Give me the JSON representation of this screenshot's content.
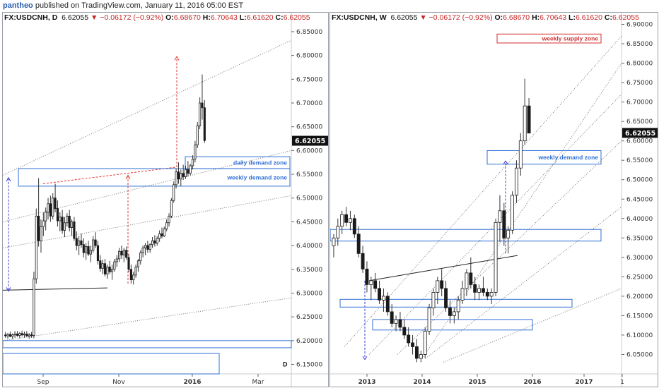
{
  "header": {
    "user": "pantheo",
    "text": "published on TradingView.com, January 11, 2016 05:00 EST"
  },
  "colors": {
    "candle_up": "#ffffff",
    "candle_down": "#1a1a1a",
    "zone_blue": "#2f6fd6",
    "supply_red": "#d32f2f",
    "arrow_red": "#e53935",
    "arrow_blue": "#3b3bd6",
    "price_tag_bg": "#111111"
  },
  "chart_data": [
    {
      "type": "candlestick",
      "symbol": "FX:USDCNH",
      "interval": "D",
      "ohlc": {
        "price": "6.62055",
        "change": "−0.06172 (−0.92%)",
        "open_label": "O:",
        "open": "6.68670",
        "high_label": "H:",
        "high": "6.70643",
        "low_label": "L:",
        "low": "6.61620",
        "close_label": "C:",
        "close": "6.62055"
      },
      "last_price_tag": "6.62055",
      "ylim": [
        6.13,
        6.89
      ],
      "yticks": [
        6.15,
        6.2,
        6.25,
        6.3,
        6.35,
        6.4,
        6.45,
        6.5,
        6.55,
        6.6,
        6.65,
        6.7,
        6.75,
        6.8,
        6.85
      ],
      "ytick_labels": [
        "6.15000",
        "6.20000",
        "6.25000",
        "6.30000",
        "6.35000",
        "6.40000",
        "6.45000",
        "6.50000",
        "6.55000",
        "6.60000",
        "6.65000",
        "6.70000",
        "6.75000",
        "6.80000",
        "6.85000"
      ],
      "xticks": [
        {
          "label": "Sep",
          "bold": false,
          "t": 57
        },
        {
          "label": "Nov",
          "bold": false,
          "t": 164
        },
        {
          "label": "2016",
          "bold": true,
          "t": 268
        },
        {
          "label": "Mar",
          "bold": false,
          "t": 361
        }
      ],
      "zones": [
        {
          "label": "daily demand zone",
          "t0": 258,
          "t1": 408,
          "y0": 6.562,
          "y1": 6.587
        },
        {
          "label": "weekly demand zone",
          "t0": 22,
          "t1": 408,
          "y0": 6.525,
          "y1": 6.562
        }
      ],
      "corner_label": "D",
      "ohlc_series": [
        [
          6.212,
          6.218,
          6.206,
          6.21
        ],
        [
          6.21,
          6.216,
          6.204,
          6.213
        ],
        [
          6.213,
          6.219,
          6.207,
          6.209
        ],
        [
          6.209,
          6.215,
          6.203,
          6.212
        ],
        [
          6.212,
          6.22,
          6.206,
          6.214
        ],
        [
          6.214,
          6.22,
          6.208,
          6.211
        ],
        [
          6.211,
          6.218,
          6.205,
          6.215
        ],
        [
          6.215,
          6.221,
          6.209,
          6.212
        ],
        [
          6.212,
          6.219,
          6.206,
          6.214
        ],
        [
          6.214,
          6.22,
          6.208,
          6.21
        ],
        [
          6.21,
          6.216,
          6.204,
          6.212
        ],
        [
          6.212,
          6.218,
          6.206,
          6.211
        ],
        [
          6.211,
          6.345,
          6.205,
          6.33
        ],
        [
          6.33,
          6.478,
          6.32,
          6.462
        ],
        [
          6.462,
          6.542,
          6.398,
          6.41
        ],
        [
          6.41,
          6.455,
          6.385,
          6.44
        ],
        [
          6.44,
          6.47,
          6.42,
          6.452
        ],
        [
          6.452,
          6.48,
          6.432,
          6.47
        ],
        [
          6.47,
          6.5,
          6.455,
          6.488
        ],
        [
          6.488,
          6.505,
          6.45,
          6.462
        ],
        [
          6.462,
          6.51,
          6.455,
          6.5
        ],
        [
          6.5,
          6.53,
          6.47,
          6.478
        ],
        [
          6.478,
          6.495,
          6.44,
          6.452
        ],
        [
          6.452,
          6.47,
          6.43,
          6.46
        ],
        [
          6.46,
          6.475,
          6.425,
          6.432
        ],
        [
          6.432,
          6.46,
          6.418,
          6.448
        ],
        [
          6.448,
          6.468,
          6.44,
          6.462
        ],
        [
          6.462,
          6.475,
          6.43,
          6.438
        ],
        [
          6.438,
          6.455,
          6.42,
          6.45
        ],
        [
          6.45,
          6.46,
          6.41,
          6.415
        ],
        [
          6.415,
          6.43,
          6.39,
          6.4
        ],
        [
          6.4,
          6.42,
          6.38,
          6.41
        ],
        [
          6.41,
          6.425,
          6.395,
          6.402
        ],
        [
          6.402,
          6.415,
          6.375,
          6.385
        ],
        [
          6.385,
          6.405,
          6.37,
          6.398
        ],
        [
          6.398,
          6.41,
          6.378,
          6.382
        ],
        [
          6.382,
          6.4,
          6.365,
          6.39
        ],
        [
          6.39,
          6.42,
          6.385,
          6.412
        ],
        [
          6.412,
          6.428,
          6.395,
          6.4
        ],
        [
          6.4,
          6.41,
          6.36,
          6.368
        ],
        [
          6.368,
          6.38,
          6.345,
          6.352
        ],
        [
          6.352,
          6.37,
          6.34,
          6.362
        ],
        [
          6.362,
          6.372,
          6.335,
          6.34
        ],
        [
          6.34,
          6.36,
          6.33,
          6.355
        ],
        [
          6.355,
          6.368,
          6.34,
          6.345
        ],
        [
          6.345,
          6.36,
          6.328,
          6.35
        ],
        [
          6.35,
          6.372,
          6.345,
          6.366
        ],
        [
          6.366,
          6.38,
          6.355,
          6.372
        ],
        [
          6.372,
          6.395,
          6.365,
          6.388
        ],
        [
          6.388,
          6.4,
          6.372,
          6.38
        ],
        [
          6.38,
          6.395,
          6.365,
          6.39
        ],
        [
          6.39,
          6.398,
          6.37,
          6.375
        ],
        [
          6.375,
          6.382,
          6.345,
          6.35
        ],
        [
          6.35,
          6.36,
          6.32,
          6.328
        ],
        [
          6.328,
          6.345,
          6.318,
          6.338
        ],
        [
          6.338,
          6.36,
          6.332,
          6.355
        ],
        [
          6.355,
          6.372,
          6.345,
          6.368
        ],
        [
          6.368,
          6.39,
          6.36,
          6.385
        ],
        [
          6.385,
          6.4,
          6.375,
          6.395
        ],
        [
          6.395,
          6.405,
          6.38,
          6.4
        ],
        [
          6.4,
          6.41,
          6.385,
          6.392
        ],
        [
          6.392,
          6.405,
          6.385,
          6.402
        ],
        [
          6.402,
          6.418,
          6.395,
          6.41
        ],
        [
          6.41,
          6.422,
          6.398,
          6.405
        ],
        [
          6.405,
          6.42,
          6.4,
          6.415
        ],
        [
          6.415,
          6.432,
          6.408,
          6.425
        ],
        [
          6.425,
          6.438,
          6.415,
          6.42
        ],
        [
          6.42,
          6.44,
          6.418,
          6.435
        ],
        [
          6.435,
          6.455,
          6.43,
          6.448
        ],
        [
          6.448,
          6.468,
          6.44,
          6.462
        ],
        [
          6.462,
          6.5,
          6.458,
          6.495
        ],
        [
          6.495,
          6.535,
          6.49,
          6.528
        ],
        [
          6.528,
          6.562,
          6.52,
          6.555
        ],
        [
          6.555,
          6.575,
          6.53,
          6.54
        ],
        [
          6.54,
          6.56,
          6.525,
          6.552
        ],
        [
          6.552,
          6.57,
          6.538,
          6.545
        ],
        [
          6.545,
          6.568,
          6.54,
          6.56
        ],
        [
          6.56,
          6.578,
          6.545,
          6.552
        ],
        [
          6.552,
          6.572,
          6.548,
          6.568
        ],
        [
          6.568,
          6.59,
          6.56,
          6.582
        ],
        [
          6.582,
          6.62,
          6.575,
          6.612
        ],
        [
          6.612,
          6.66,
          6.605,
          6.652
        ],
        [
          6.652,
          6.712,
          6.645,
          6.7
        ],
        [
          6.7,
          6.76,
          6.665,
          6.69
        ],
        [
          6.69,
          6.706,
          6.616,
          6.621
        ]
      ]
    },
    {
      "type": "candlestick",
      "symbol": "FX:USDCNH",
      "interval": "W",
      "ohlc": {
        "price": "6.62055",
        "change": "−0.06172 (−0.92%)",
        "open_label": "O:",
        "open": "6.68670",
        "high_label": "H:",
        "high": "6.70643",
        "low_label": "L:",
        "low": "6.61620",
        "close_label": "C:",
        "close": "6.62055"
      },
      "last_price_tag": "6.62055",
      "ylim": [
        6.0,
        6.93
      ],
      "yticks": [
        6.05,
        6.1,
        6.15,
        6.2,
        6.25,
        6.3,
        6.35,
        6.4,
        6.45,
        6.5,
        6.55,
        6.6,
        6.65,
        6.7,
        6.75,
        6.8,
        6.85,
        6.9
      ],
      "ytick_labels": [
        "6.05000",
        "6.10000",
        "6.15000",
        "6.20000",
        "6.25000",
        "6.30000",
        "6.35000",
        "6.40000",
        "6.45000",
        "6.50000",
        "6.55000",
        "6.60000",
        "6.65000",
        "6.70000",
        "6.75000",
        "6.80000",
        "6.85000",
        "6.90000"
      ],
      "xticks": [
        {
          "label": "2013",
          "bold": true,
          "t": 52
        },
        {
          "label": "2014",
          "bold": true,
          "t": 130
        },
        {
          "label": "2015",
          "bold": true,
          "t": 208
        },
        {
          "label": "2016",
          "bold": true,
          "t": 286
        },
        {
          "label": "2017",
          "bold": true,
          "t": 359
        },
        {
          "label": "1",
          "bold": false,
          "t": 413
        }
      ],
      "zones": [
        {
          "label": "weekly supply zone",
          "t0": 236,
          "t1": 383,
          "y0": 6.852,
          "y1": 6.875,
          "kind": "supply"
        },
        {
          "label": "weekly demand zone",
          "t0": 222,
          "t1": 383,
          "y0": 6.54,
          "y1": 6.575
        },
        {
          "label": "",
          "t0": 0,
          "t1": 383,
          "y0": 6.342,
          "y1": 6.372
        },
        {
          "label": "",
          "t0": 14,
          "t1": 342,
          "y0": 6.172,
          "y1": 6.192
        },
        {
          "label": "",
          "t0": 60,
          "t1": 286,
          "y0": 6.113,
          "y1": 6.14
        }
      ],
      "ohlc_series": [
        [
          6.33,
          6.36,
          6.3,
          6.35
        ],
        [
          6.35,
          6.4,
          6.33,
          6.38
        ],
        [
          6.38,
          6.42,
          6.36,
          6.41
        ],
        [
          6.41,
          6.43,
          6.38,
          6.39
        ],
        [
          6.39,
          6.42,
          6.37,
          6.4
        ],
        [
          6.4,
          6.41,
          6.35,
          6.36
        ],
        [
          6.36,
          6.38,
          6.3,
          6.31
        ],
        [
          6.31,
          6.33,
          6.26,
          6.27
        ],
        [
          6.27,
          6.29,
          6.21,
          6.23
        ],
        [
          6.23,
          6.25,
          6.19,
          6.24
        ],
        [
          6.24,
          6.26,
          6.21,
          6.22
        ],
        [
          6.22,
          6.24,
          6.18,
          6.19
        ],
        [
          6.19,
          6.22,
          6.16,
          6.2
        ],
        [
          6.2,
          6.21,
          6.15,
          6.16
        ],
        [
          6.16,
          6.18,
          6.12,
          6.13
        ],
        [
          6.13,
          6.15,
          6.11,
          6.14
        ],
        [
          6.14,
          6.16,
          6.11,
          6.12
        ],
        [
          6.12,
          6.14,
          6.09,
          6.1
        ],
        [
          6.1,
          6.12,
          6.07,
          6.08
        ],
        [
          6.08,
          6.1,
          6.05,
          6.07
        ],
        [
          6.07,
          6.09,
          6.03,
          6.04
        ],
        [
          6.04,
          6.06,
          6.03,
          6.05
        ],
        [
          6.05,
          6.12,
          6.04,
          6.11
        ],
        [
          6.11,
          6.18,
          6.1,
          6.17
        ],
        [
          6.17,
          6.22,
          6.15,
          6.21
        ],
        [
          6.21,
          6.25,
          6.18,
          6.24
        ],
        [
          6.24,
          6.27,
          6.2,
          6.22
        ],
        [
          6.22,
          6.24,
          6.16,
          6.17
        ],
        [
          6.17,
          6.19,
          6.13,
          6.15
        ],
        [
          6.15,
          6.17,
          6.13,
          6.16
        ],
        [
          6.16,
          6.2,
          6.14,
          6.19
        ],
        [
          6.19,
          6.24,
          6.18,
          6.22
        ],
        [
          6.22,
          6.27,
          6.2,
          6.26
        ],
        [
          6.26,
          6.3,
          6.22,
          6.23
        ],
        [
          6.23,
          6.25,
          6.19,
          6.21
        ],
        [
          6.21,
          6.23,
          6.19,
          6.22
        ],
        [
          6.22,
          6.25,
          6.2,
          6.21
        ],
        [
          6.21,
          6.22,
          6.19,
          6.2
        ],
        [
          6.2,
          6.22,
          6.18,
          6.21
        ],
        [
          6.21,
          6.4,
          6.2,
          6.39
        ],
        [
          6.39,
          6.46,
          6.34,
          6.42
        ],
        [
          6.42,
          6.44,
          6.33,
          6.35
        ],
        [
          6.35,
          6.38,
          6.31,
          6.37
        ],
        [
          6.37,
          6.47,
          6.36,
          6.46
        ],
        [
          6.46,
          6.55,
          6.44,
          6.53
        ],
        [
          6.53,
          6.62,
          6.51,
          6.6
        ],
        [
          6.6,
          6.76,
          6.59,
          6.69
        ],
        [
          6.69,
          6.71,
          6.62,
          6.62
        ]
      ]
    }
  ]
}
